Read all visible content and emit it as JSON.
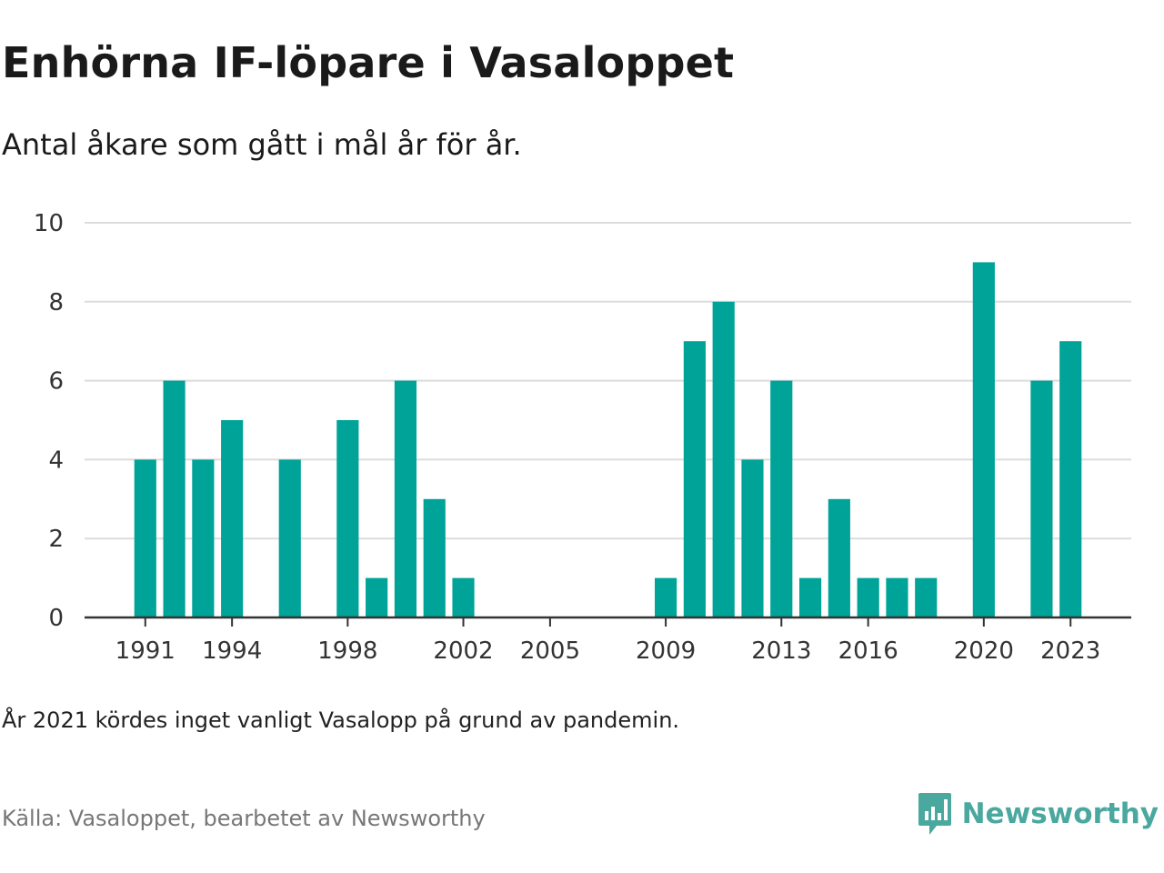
{
  "header": {
    "title": "Enhörna IF-löpare i Vasaloppet",
    "subtitle": "Antal åkare som gått i mål år för år."
  },
  "footer": {
    "note": "År 2021 kördes inget vanligt Vasalopp på grund av pandemin.",
    "source": "Källa: Vasaloppet, bearbetet av Newsworthy",
    "brand": "Newsworthy"
  },
  "colors": {
    "bar": "#00a398",
    "grid": "#dcdcdc",
    "axis": "#333333",
    "brand": "#4aa89f"
  },
  "icons": {
    "brand": "newsworthy-logo-icon"
  },
  "chart_data": {
    "type": "bar",
    "x": [
      1991,
      1992,
      1993,
      1994,
      1995,
      1996,
      1997,
      1998,
      1999,
      2000,
      2001,
      2002,
      2003,
      2004,
      2005,
      2006,
      2007,
      2008,
      2009,
      2010,
      2011,
      2012,
      2013,
      2014,
      2015,
      2016,
      2017,
      2018,
      2019,
      2020,
      2021,
      2022,
      2023
    ],
    "values": [
      4,
      6,
      4,
      5,
      0,
      4,
      0,
      5,
      1,
      6,
      3,
      1,
      0,
      0,
      0,
      0,
      0,
      0,
      1,
      7,
      8,
      4,
      6,
      1,
      3,
      1,
      1,
      1,
      0,
      9,
      0,
      6,
      7
    ],
    "xticks": [
      1991,
      1994,
      1998,
      2002,
      2005,
      2009,
      2013,
      2016,
      2020,
      2023
    ],
    "yticks": [
      0,
      2,
      4,
      6,
      8,
      10
    ],
    "ylim": [
      0,
      10
    ],
    "xlim": [
      1988.9,
      2025.1
    ],
    "grid": true,
    "legend": "none"
  }
}
